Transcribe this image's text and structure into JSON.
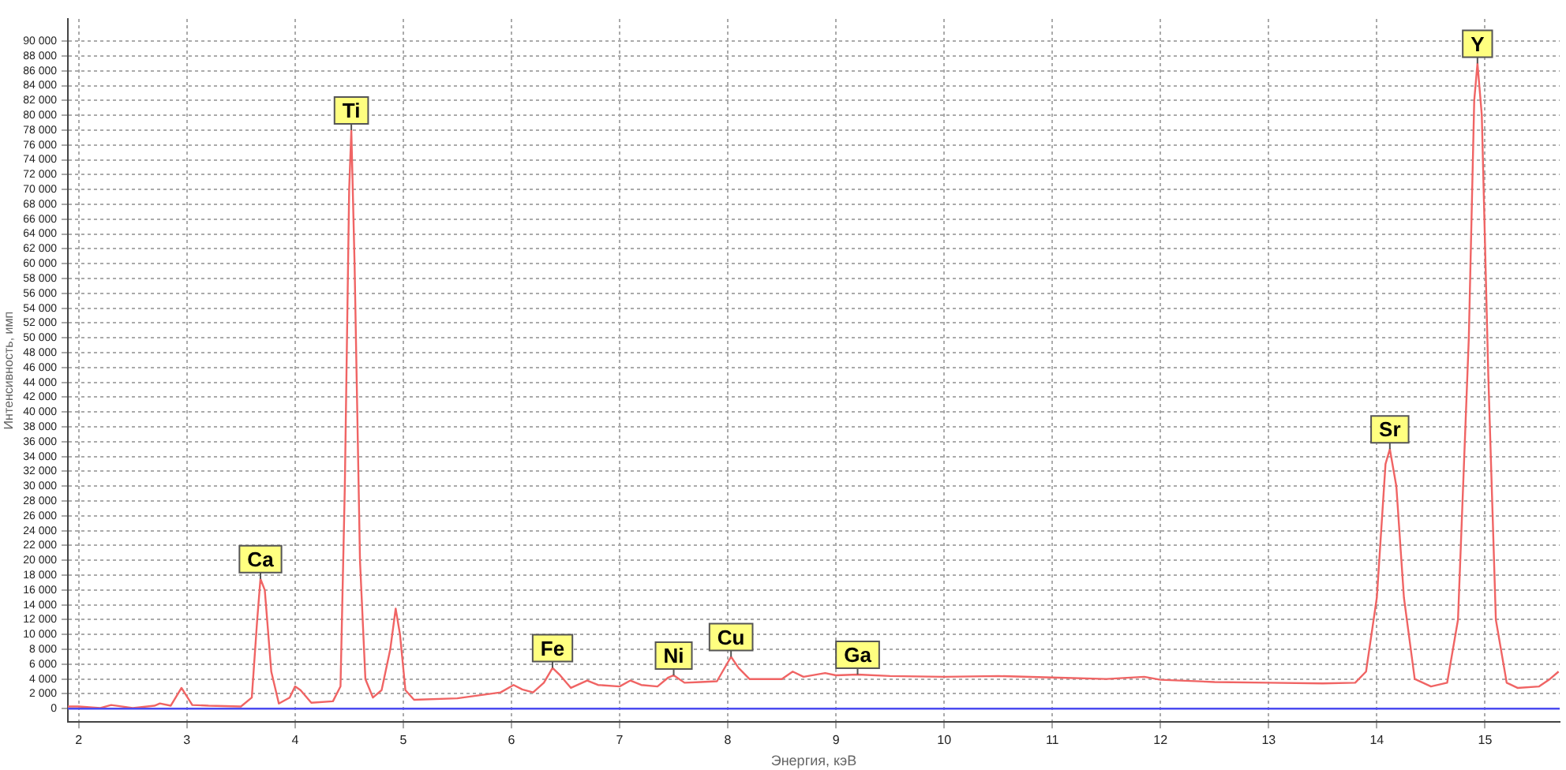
{
  "chart_data": {
    "type": "line",
    "xlabel": "Энергия, кэВ",
    "ylabel": "Интенсивность, имп",
    "series": [
      {
        "color": "#f06464",
        "x": [
          1.9,
          2.0,
          2.2,
          2.3,
          2.5,
          2.7,
          2.75,
          2.85,
          2.95,
          3.05,
          3.2,
          3.5,
          3.6,
          3.65,
          3.68,
          3.72,
          3.78,
          3.85,
          3.95,
          4.0,
          4.05,
          4.15,
          4.35,
          4.42,
          4.46,
          4.5,
          4.52,
          4.55,
          4.6,
          4.65,
          4.72,
          4.8,
          4.88,
          4.93,
          4.97,
          5.02,
          5.1,
          5.5,
          5.9,
          6.02,
          6.1,
          6.2,
          6.3,
          6.38,
          6.45,
          6.55,
          6.7,
          6.8,
          7.0,
          7.1,
          7.2,
          7.35,
          7.45,
          7.5,
          7.6,
          7.75,
          7.9,
          8.03,
          8.1,
          8.2,
          8.5,
          8.6,
          8.7,
          8.9,
          9.0,
          9.2,
          9.5,
          10,
          10.5,
          11,
          11.5,
          11.85,
          12,
          12.5,
          13,
          13.5,
          13.8,
          13.9,
          14.0,
          14.08,
          14.12,
          14.18,
          14.25,
          14.35,
          14.5,
          14.65,
          14.75,
          14.85,
          14.9,
          14.93,
          14.97,
          15.03,
          15.1,
          15.2,
          15.3,
          15.5,
          15.6,
          15.68
        ],
        "values": [
          300,
          300,
          100,
          500,
          100,
          400,
          700,
          400,
          2800,
          500,
          400,
          300,
          1500,
          12000,
          17500,
          16000,
          5000,
          700,
          1500,
          3000,
          2500,
          800,
          1000,
          3000,
          30000,
          70000,
          78000,
          60000,
          20000,
          4000,
          1500,
          2500,
          8000,
          13500,
          10000,
          2500,
          1200,
          1400,
          2200,
          3200,
          2600,
          2200,
          3500,
          5500,
          4500,
          2800,
          3800,
          3200,
          3000,
          3800,
          3200,
          3000,
          4200,
          4500,
          3500,
          3600,
          3700,
          7000,
          5500,
          4000,
          4000,
          5000,
          4300,
          4800,
          4500,
          4600,
          4400,
          4300,
          4400,
          4200,
          4000,
          4300,
          3900,
          3600,
          3500,
          3400,
          3500,
          5000,
          15000,
          33000,
          35000,
          30000,
          15000,
          4000,
          3000,
          3500,
          12000,
          50000,
          82000,
          87000,
          80000,
          45000,
          12000,
          3500,
          2800,
          3000,
          4000,
          5000
        ]
      }
    ],
    "xlim": [
      1.9,
      15.69
    ],
    "xticks": [
      2,
      3,
      4,
      5,
      6,
      7,
      8,
      9,
      10,
      11,
      12,
      13,
      14,
      15
    ],
    "ylim": [
      -1800,
      93000
    ],
    "yticks": [
      0,
      {
        "value": 2000,
        "label": "2 000"
      },
      {
        "value": 4000,
        "label": "4 000"
      },
      {
        "value": 6000,
        "label": "6 000"
      },
      {
        "value": 8000,
        "label": "8 000"
      },
      {
        "value": 10000,
        "label": "10 000"
      },
      {
        "value": 12000,
        "label": "12 000"
      },
      {
        "value": 14000,
        "label": "14 000"
      },
      {
        "value": 16000,
        "label": "16 000"
      },
      {
        "value": 18000,
        "label": "18 000"
      },
      {
        "value": 20000,
        "label": "20 000"
      },
      {
        "value": 22000,
        "label": "22 000"
      },
      {
        "value": 24000,
        "label": "24 000"
      },
      {
        "value": 26000,
        "label": "26 000"
      },
      {
        "value": 28000,
        "label": "28 000"
      },
      {
        "value": 30000,
        "label": "30 000"
      },
      {
        "value": 32000,
        "label": "32 000"
      },
      {
        "value": 34000,
        "label": "34 000"
      },
      {
        "value": 36000,
        "label": "36 000"
      },
      {
        "value": 38000,
        "label": "38 000"
      },
      {
        "value": 40000,
        "label": "40 000"
      },
      {
        "value": 42000,
        "label": "42 000"
      },
      {
        "value": 44000,
        "label": "44 000"
      },
      {
        "value": 46000,
        "label": "46 000"
      },
      {
        "value": 48000,
        "label": "48 000"
      },
      {
        "value": 50000,
        "label": "50 000"
      },
      {
        "value": 52000,
        "label": "52 000"
      },
      {
        "value": 54000,
        "label": "54 000"
      },
      {
        "value": 56000,
        "label": "56 000"
      },
      {
        "value": 58000,
        "label": "58 000"
      },
      {
        "value": 60000,
        "label": "60 000"
      },
      {
        "value": 62000,
        "label": "62 000"
      },
      {
        "value": 64000,
        "label": "64 000"
      },
      {
        "value": 66000,
        "label": "66 000"
      },
      {
        "value": 68000,
        "label": "68 000"
      },
      {
        "value": 70000,
        "label": "70 000"
      },
      {
        "value": 72000,
        "label": "72 000"
      },
      {
        "value": 74000,
        "label": "74 000"
      },
      {
        "value": 76000,
        "label": "76 000"
      },
      {
        "value": 78000,
        "label": "78 000"
      },
      {
        "value": 80000,
        "label": "80 000"
      },
      {
        "value": 82000,
        "label": "82 000"
      },
      {
        "value": 84000,
        "label": "84 000"
      },
      {
        "value": 86000,
        "label": "86 000"
      },
      {
        "value": 88000,
        "label": "88 000"
      },
      {
        "value": 90000,
        "label": "90 000"
      }
    ],
    "ref_lines": [
      {
        "axis": "y",
        "value": 0,
        "color": "#4b4bf0"
      }
    ],
    "annotations": [
      {
        "text": "Ca",
        "x": 3.68,
        "y": 17500
      },
      {
        "text": "Ti",
        "x": 4.52,
        "y": 78000
      },
      {
        "text": "Fe",
        "x": 6.38,
        "y": 5500
      },
      {
        "text": "Ni",
        "x": 7.5,
        "y": 4500
      },
      {
        "text": "Cu",
        "x": 8.03,
        "y": 7000
      },
      {
        "text": "Ga",
        "x": 9.2,
        "y": 4600
      },
      {
        "text": "Sr",
        "x": 14.12,
        "y": 35000
      },
      {
        "text": "Y",
        "x": 14.93,
        "y": 87000
      }
    ],
    "grid": true,
    "legend": false,
    "marker": "none",
    "line_style": "solid"
  }
}
